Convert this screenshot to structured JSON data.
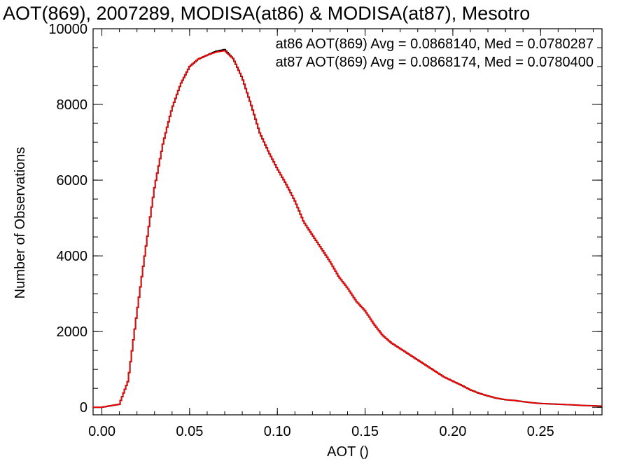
{
  "chart_data": {
    "type": "line",
    "title": "AOT(869), 2007289, MODISA(at86) & MODISA(at87), Mesotro",
    "xlabel": "AOT ()",
    "ylabel": "Number of Observations",
    "xlim": [
      -0.005,
      0.285
    ],
    "ylim": [
      -200,
      10000
    ],
    "x_ticks": [
      "0.00",
      "0.05",
      "0.10",
      "0.15",
      "0.20",
      "0.25"
    ],
    "y_ticks": [
      "0",
      "2000",
      "4000",
      "6000",
      "8000",
      "10000"
    ],
    "grid": false,
    "legend_position": "top-right",
    "annotations": [
      {
        "text": "at86 AOT(869) Avg = 0.0868140, Med = 0.0780287",
        "color": "#000000"
      },
      {
        "text": "at87 AOT(869) Avg = 0.0868174, Med = 0.0780400",
        "color": "#ff0000"
      }
    ],
    "x": [
      0.0,
      0.01,
      0.015,
      0.02,
      0.025,
      0.03,
      0.035,
      0.04,
      0.045,
      0.05,
      0.055,
      0.06,
      0.065,
      0.07,
      0.075,
      0.08,
      0.085,
      0.09,
      0.095,
      0.1,
      0.105,
      0.11,
      0.115,
      0.12,
      0.125,
      0.13,
      0.135,
      0.14,
      0.145,
      0.15,
      0.155,
      0.16,
      0.165,
      0.17,
      0.175,
      0.18,
      0.185,
      0.19,
      0.195,
      0.2,
      0.205,
      0.21,
      0.215,
      0.22,
      0.225,
      0.23,
      0.235,
      0.24,
      0.245,
      0.25,
      0.255,
      0.26,
      0.265,
      0.27,
      0.275,
      0.28,
      0.285
    ],
    "series": [
      {
        "name": "at86",
        "color": "#000000",
        "values": [
          0,
          80,
          700,
          2500,
          4200,
          5800,
          7000,
          7900,
          8550,
          9000,
          9200,
          9300,
          9400,
          9450,
          9200,
          8700,
          8000,
          7250,
          6750,
          6300,
          5900,
          5450,
          4900,
          4550,
          4200,
          3850,
          3450,
          3150,
          2800,
          2550,
          2200,
          1900,
          1700,
          1550,
          1400,
          1250,
          1100,
          950,
          800,
          690,
          580,
          460,
          370,
          300,
          240,
          200,
          180,
          150,
          120,
          100,
          90,
          80,
          70,
          60,
          45,
          40,
          30
        ]
      },
      {
        "name": "at87",
        "color": "#ff0000",
        "values": [
          0,
          80,
          700,
          2500,
          4200,
          5800,
          7000,
          7900,
          8550,
          9000,
          9200,
          9300,
          9380,
          9420,
          9200,
          8700,
          8000,
          7250,
          6750,
          6300,
          5900,
          5450,
          4900,
          4550,
          4200,
          3850,
          3450,
          3150,
          2800,
          2550,
          2200,
          1900,
          1700,
          1550,
          1400,
          1250,
          1100,
          950,
          800,
          690,
          580,
          460,
          370,
          300,
          240,
          200,
          180,
          150,
          120,
          100,
          90,
          80,
          70,
          60,
          45,
          40,
          30
        ]
      }
    ]
  }
}
